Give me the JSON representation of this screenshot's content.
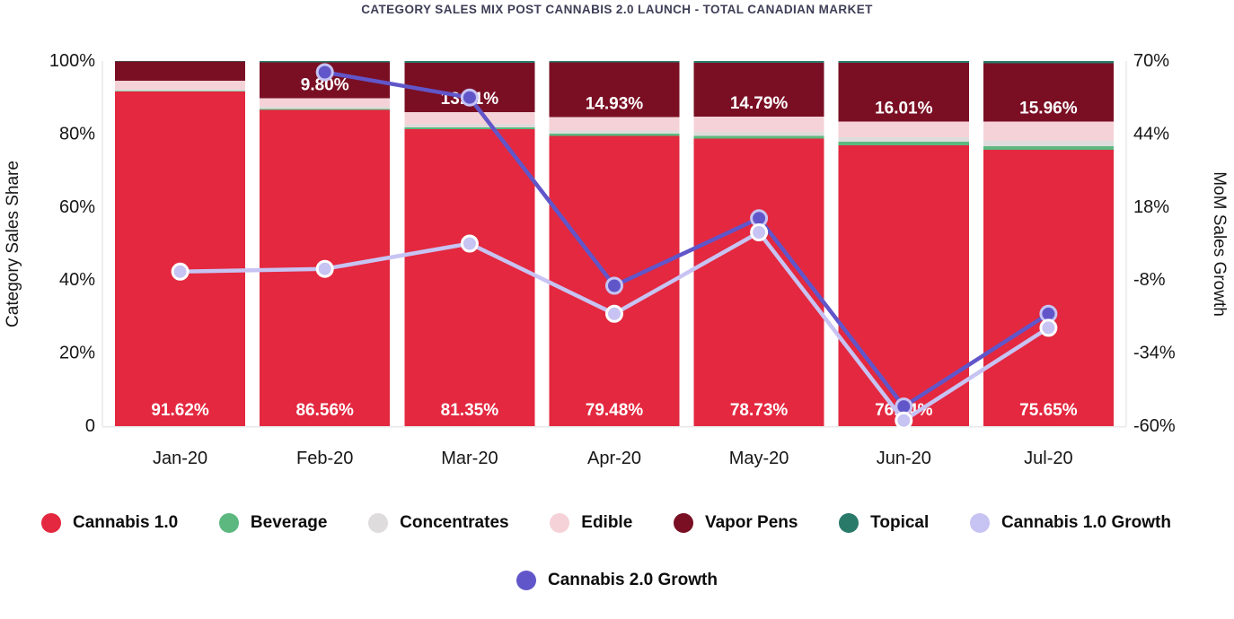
{
  "chart_data": {
    "type": "bar",
    "subtype": "100-percent-stacked-columns-with-line-overlay",
    "title": "CATEGORY SALES MIX POST CANNABIS 2.0 LAUNCH - TOTAL CANADIAN MARKET",
    "ylabel_left": "Category Sales Share",
    "ylabel_right": "MoM Sales Growth",
    "legend_position": "bottom",
    "grid": false,
    "categories": [
      "Jan-20",
      "Feb-20",
      "Mar-20",
      "Apr-20",
      "May-20",
      "Jun-20",
      "Jul-20"
    ],
    "left_axis": {
      "range": [
        0,
        100
      ],
      "tick_values": [
        100,
        80,
        60,
        40,
        20,
        0
      ],
      "tick_labels": [
        "100%",
        "80%",
        "60%",
        "40%",
        "20%",
        "0"
      ]
    },
    "right_axis": {
      "range": [
        -60,
        70
      ],
      "tick_values": [
        70,
        44,
        18,
        -8,
        -34,
        -60
      ],
      "tick_labels": [
        "70%",
        "44%",
        "18%",
        "-8%",
        "-34%",
        "-60%"
      ]
    },
    "bar_series": [
      {
        "name": "Cannabis 1.0",
        "color": "#e3283f",
        "label_anchor": "bar-bottom",
        "values": [
          91.62,
          86.56,
          81.35,
          79.48,
          78.73,
          76.94,
          75.65
        ],
        "labels": [
          "91.62%",
          "86.56%",
          "81.35%",
          "79.48%",
          "78.73%",
          "76.94%",
          "75.65%"
        ]
      },
      {
        "name": "Beverage",
        "color": "#5cb87e",
        "values": [
          0.2,
          0.3,
          0.5,
          0.6,
          0.8,
          1.0,
          1.0
        ]
      },
      {
        "name": "Concentrates",
        "color": "#dedcdc",
        "values": [
          0.5,
          0.6,
          0.8,
          0.9,
          1.0,
          1.2,
          1.5
        ]
      },
      {
        "name": "Edible",
        "color": "#f5d2d7",
        "values": [
          2.3,
          2.4,
          3.3,
          3.7,
          4.2,
          4.3,
          5.3
        ]
      },
      {
        "name": "Vapor Pens",
        "color": "#7a0f24",
        "label_anchor": "segment-bottom",
        "values": [
          5.2,
          9.8,
          13.61,
          14.93,
          14.79,
          16.01,
          15.96
        ],
        "labels": [
          null,
          "9.80%",
          "13.61%",
          "14.93%",
          "14.79%",
          "16.01%",
          "15.96%"
        ]
      },
      {
        "name": "Topical",
        "color": "#2a7a6a",
        "values": [
          0.18,
          0.34,
          0.44,
          0.39,
          0.48,
          0.55,
          0.59
        ]
      }
    ],
    "line_series": [
      {
        "name": "Cannabis 2.0 Growth",
        "color": "#6156c9",
        "marker_stroke": "#c7c3f3",
        "axis": "right",
        "values": [
          null,
          66,
          57,
          -10,
          14,
          -53,
          -20
        ]
      },
      {
        "name": "Cannabis 1.0 Growth",
        "color": "#c7c3f3",
        "marker_stroke": "#ffffff",
        "axis": "right",
        "values": [
          -5,
          -4,
          5,
          -20,
          9,
          -58,
          -25
        ]
      }
    ]
  },
  "legend": {
    "row1": [
      {
        "label": "Cannabis 1.0",
        "color": "#e3283f"
      },
      {
        "label": "Beverage",
        "color": "#5cb87e"
      },
      {
        "label": "Concentrates",
        "color": "#dedcdc"
      },
      {
        "label": "Edible",
        "color": "#f5d2d7"
      },
      {
        "label": "Vapor Pens",
        "color": "#7a0f24"
      },
      {
        "label": "Topical",
        "color": "#2a7a6a"
      },
      {
        "label": "Cannabis 1.0 Growth",
        "color": "#c7c3f3"
      }
    ],
    "row2": [
      {
        "label": "Cannabis 2.0 Growth",
        "color": "#6156c9"
      }
    ]
  }
}
